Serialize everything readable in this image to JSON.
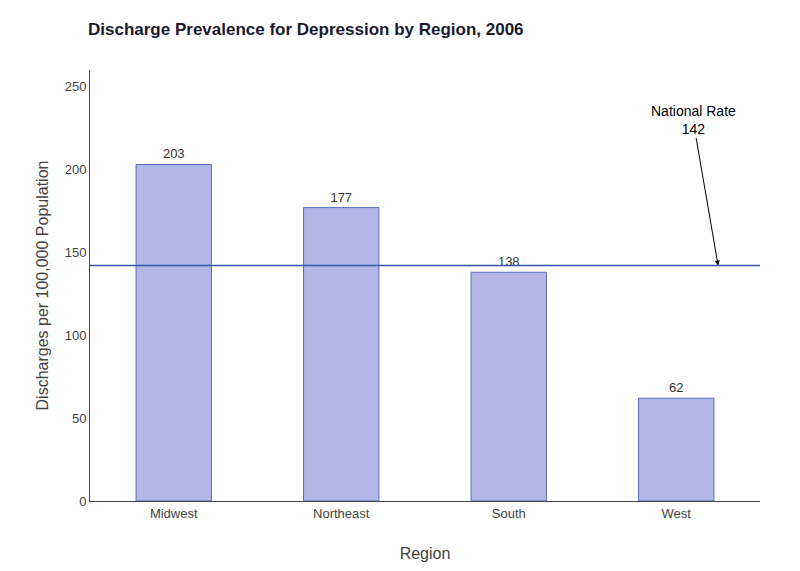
{
  "chart_data": {
    "type": "bar",
    "title": "Discharge Prevalence for Depression by Region, 2006",
    "categories": [
      "Midwest",
      "Northeast",
      "South",
      "West"
    ],
    "values": [
      203,
      177,
      138,
      62
    ],
    "color": "#b3b7e8",
    "xlabel": "Region",
    "ylabel": "Discharges per 100,000 Population",
    "ylim": [
      0,
      260
    ],
    "yticks": [
      0,
      50,
      100,
      150,
      200,
      250
    ],
    "grid": false,
    "data_labels": true,
    "national_rate": {
      "value": 142,
      "label": "National Rate",
      "color": "#3355aa"
    }
  }
}
